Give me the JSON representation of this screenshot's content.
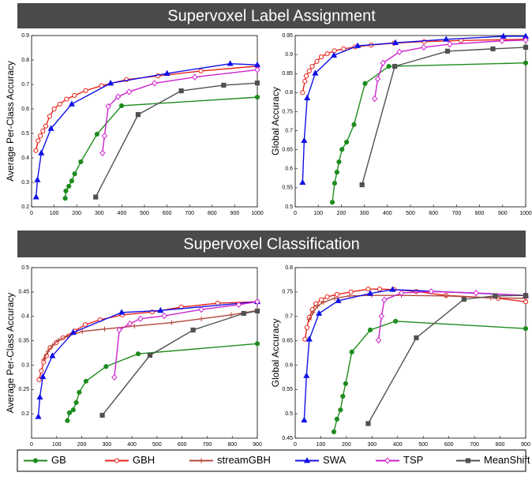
{
  "headers": [
    "Supervoxel Label Assignment",
    "Supervoxel Classification"
  ],
  "legend": [
    {
      "name": "GB",
      "color": "#1e8c1e",
      "marker": "circle",
      "filled": true
    },
    {
      "name": "GBH",
      "color": "#e8221a",
      "marker": "circle",
      "filled": false
    },
    {
      "name": "streamGBH",
      "color": "#b4473c",
      "marker": "plus",
      "filled": false
    },
    {
      "name": "SWA",
      "color": "#1010e8",
      "marker": "triangle",
      "filled": true
    },
    {
      "name": "TSP",
      "color": "#cc22cc",
      "marker": "diamond",
      "filled": false
    },
    {
      "name": "MeanShift",
      "color": "#505050",
      "marker": "square",
      "filled": true
    }
  ],
  "chart_data": [
    {
      "type": "line",
      "ylabel": "Average Per-Class Accuracy",
      "xlim": [
        0,
        1000
      ],
      "xticks": [
        0,
        100,
        200,
        300,
        400,
        500,
        600,
        700,
        800,
        900,
        1000
      ],
      "ylim": [
        0.2,
        0.9
      ],
      "yticks": [
        0.2,
        0.3,
        0.4,
        0.5,
        0.6,
        0.7,
        0.8,
        0.9
      ],
      "series": [
        {
          "name": "GB",
          "x": [
            149,
            152,
            165,
            178,
            191,
            218,
            290,
            399,
            1000
          ],
          "values": [
            0.235,
            0.265,
            0.284,
            0.306,
            0.335,
            0.384,
            0.497,
            0.613,
            0.648
          ]
        },
        {
          "name": "GBH",
          "x": [
            19,
            29,
            39,
            50,
            63,
            80,
            100,
            125,
            155,
            190,
            240,
            310,
            420,
            560,
            750,
            1000
          ],
          "values": [
            0.43,
            0.47,
            0.49,
            0.51,
            0.53,
            0.57,
            0.6,
            0.62,
            0.64,
            0.655,
            0.675,
            0.695,
            0.72,
            0.735,
            0.755,
            0.775
          ]
        },
        {
          "name": "SWA",
          "x": [
            20,
            26,
            43,
            86,
            178,
            350,
            600,
            880,
            1000
          ],
          "values": [
            0.24,
            0.31,
            0.42,
            0.52,
            0.62,
            0.705,
            0.745,
            0.785,
            0.78
          ]
        },
        {
          "name": "TSP",
          "x": [
            314,
            323,
            340,
            383,
            432,
            545,
            723,
            1000
          ],
          "values": [
            0.42,
            0.49,
            0.61,
            0.65,
            0.67,
            0.705,
            0.73,
            0.76
          ]
        },
        {
          "name": "MeanShift",
          "x": [
            284,
            472,
            663,
            851,
            1000
          ],
          "values": [
            0.24,
            0.577,
            0.674,
            0.697,
            0.706
          ]
        }
      ]
    },
    {
      "type": "line",
      "ylabel": "Global Accuracy",
      "xlim": [
        0,
        1000
      ],
      "xticks": [
        0,
        100,
        200,
        300,
        400,
        500,
        600,
        700,
        800,
        900,
        1000
      ],
      "ylim": [
        0.5,
        0.95
      ],
      "yticks": [
        0.5,
        0.55,
        0.6,
        0.65,
        0.7,
        0.75,
        0.8,
        0.85,
        0.9,
        0.95
      ],
      "series": [
        {
          "name": "GB",
          "x": [
            161,
            171,
            181,
            190,
            203,
            223,
            255,
            303,
            406,
            1000
          ],
          "values": [
            0.512,
            0.562,
            0.591,
            0.618,
            0.651,
            0.67,
            0.716,
            0.824,
            0.869,
            0.878
          ]
        },
        {
          "name": "GBH",
          "x": [
            32,
            42,
            48,
            61,
            74,
            94,
            113,
            139,
            170,
            210,
            260,
            330,
            430,
            560,
            720,
            1000
          ],
          "values": [
            0.8,
            0.83,
            0.844,
            0.857,
            0.869,
            0.882,
            0.894,
            0.902,
            0.91,
            0.915,
            0.92,
            0.925,
            0.93,
            0.934,
            0.937,
            0.94
          ]
        },
        {
          "name": "SWA",
          "x": [
            32,
            39,
            52,
            87,
            168,
            271,
            435,
            655,
            903,
            1000
          ],
          "values": [
            0.564,
            0.674,
            0.786,
            0.851,
            0.898,
            0.923,
            0.931,
            0.94,
            0.948,
            0.948
          ]
        },
        {
          "name": "TSP",
          "x": [
            345,
            358,
            381,
            452,
            558,
            671,
            897,
            1000
          ],
          "values": [
            0.784,
            0.836,
            0.878,
            0.907,
            0.919,
            0.927,
            0.936,
            0.938
          ]
        },
        {
          "name": "MeanShift",
          "x": [
            290,
            432,
            661,
            858,
            1000
          ],
          "values": [
            0.558,
            0.869,
            0.909,
            0.915,
            0.919
          ]
        }
      ]
    },
    {
      "type": "line",
      "ylabel": "Average Per-Class Accuracy",
      "xlim": [
        0,
        900
      ],
      "xticks": [
        0,
        100,
        200,
        300,
        400,
        500,
        600,
        700,
        800,
        900
      ],
      "ylim": [
        0.15,
        0.5
      ],
      "yticks": [
        0.2,
        0.25,
        0.3,
        0.35,
        0.4,
        0.45,
        0.5
      ],
      "series": [
        {
          "name": "GB",
          "x": [
            143,
            151,
            166,
            178,
            190,
            217,
            297,
            425,
            900
          ],
          "values": [
            0.186,
            0.202,
            0.208,
            0.223,
            0.244,
            0.267,
            0.297,
            0.323,
            0.344
          ]
        },
        {
          "name": "GBH",
          "x": [
            30,
            39,
            48,
            59,
            74,
            98,
            125,
            172,
            214,
            273,
            362,
            481,
            597,
            742,
            900
          ],
          "values": [
            0.27,
            0.288,
            0.306,
            0.319,
            0.336,
            0.346,
            0.356,
            0.37,
            0.383,
            0.393,
            0.403,
            0.409,
            0.419,
            0.427,
            0.43
          ]
        },
        {
          "name": "streamGBH",
          "x": [
            48,
            65,
            83,
            107,
            143,
            202,
            291,
            410,
            558,
            677,
            796,
            900
          ],
          "values": [
            0.312,
            0.328,
            0.34,
            0.351,
            0.359,
            0.369,
            0.374,
            0.38,
            0.387,
            0.395,
            0.403,
            0.412
          ]
        },
        {
          "name": "SWA",
          "x": [
            27,
            33,
            45,
            83,
            166,
            359,
            514,
            900
          ],
          "values": [
            0.194,
            0.234,
            0.276,
            0.319,
            0.367,
            0.408,
            0.412,
            0.43
          ]
        },
        {
          "name": "TSP",
          "x": [
            330,
            350,
            392,
            434,
            529,
            677,
            826,
            900
          ],
          "values": [
            0.275,
            0.372,
            0.385,
            0.395,
            0.401,
            0.414,
            0.424,
            0.43
          ]
        },
        {
          "name": "MeanShift",
          "x": [
            282,
            472,
            644,
            846,
            900
          ],
          "values": [
            0.197,
            0.32,
            0.372,
            0.406,
            0.411
          ]
        }
      ]
    },
    {
      "type": "line",
      "ylabel": "Global Accuracy",
      "xlim": [
        0,
        900
      ],
      "xticks": [
        0,
        100,
        200,
        300,
        400,
        500,
        600,
        700,
        800,
        900
      ],
      "ylim": [
        0.45,
        0.8
      ],
      "yticks": [
        0.45,
        0.5,
        0.55,
        0.6,
        0.65,
        0.7,
        0.75,
        0.8
      ],
      "series": [
        {
          "name": "GB",
          "x": [
            151,
            163,
            177,
            186,
            197,
            221,
            293,
            392,
            900
          ],
          "values": [
            0.463,
            0.489,
            0.508,
            0.536,
            0.562,
            0.627,
            0.672,
            0.69,
            0.675
          ]
        },
        {
          "name": "GBH",
          "x": [
            38,
            46,
            55,
            67,
            81,
            102,
            125,
            163,
            218,
            285,
            330,
            386,
            473,
            589,
            793,
            900
          ],
          "values": [
            0.653,
            0.677,
            0.698,
            0.714,
            0.726,
            0.734,
            0.74,
            0.745,
            0.75,
            0.756,
            0.756,
            0.755,
            0.751,
            0.743,
            0.737,
            0.73
          ]
        },
        {
          "name": "streamGBH",
          "x": [
            55,
            70,
            87,
            110,
            154,
            212,
            299,
            415,
            589,
            764,
            900
          ],
          "values": [
            0.693,
            0.708,
            0.721,
            0.729,
            0.737,
            0.742,
            0.743,
            0.743,
            0.742,
            0.738,
            0.737
          ]
        },
        {
          "name": "SWA",
          "x": [
            35,
            44,
            55,
            93,
            168,
            293,
            380,
            900
          ],
          "values": [
            0.487,
            0.578,
            0.653,
            0.706,
            0.732,
            0.747,
            0.755,
            0.743
          ]
        },
        {
          "name": "TSP",
          "x": [
            325,
            337,
            348,
            415,
            531,
            706,
            900
          ],
          "values": [
            0.651,
            0.7,
            0.734,
            0.748,
            0.751,
            0.748,
            0.743
          ]
        },
        {
          "name": "MeanShift",
          "x": [
            285,
            473,
            659,
            781,
            900
          ],
          "values": [
            0.48,
            0.656,
            0.735,
            0.742,
            0.743
          ]
        }
      ]
    }
  ]
}
